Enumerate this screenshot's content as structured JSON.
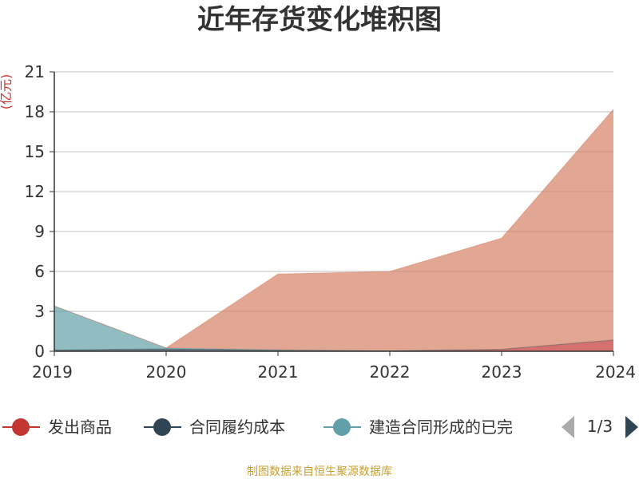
{
  "chart_data": {
    "type": "area",
    "title": "近年存货变化堆积图",
    "ylabel": "(亿元)",
    "x": [
      "2019",
      "2020",
      "2021",
      "2022",
      "2023",
      "2024"
    ],
    "ylim": [
      0,
      21
    ],
    "yticks": [
      0,
      3,
      6,
      9,
      12,
      15,
      18,
      21
    ],
    "stacked": true,
    "grid": true,
    "legend_position": "bottom",
    "series": [
      {
        "name": "发出商品",
        "color": "#c23531",
        "values": [
          0.0,
          0.0,
          0.0,
          0.0,
          0.15,
          0.85
        ]
      },
      {
        "name": "合同履约成本",
        "color": "#2f4554",
        "values": [
          0.1,
          0.2,
          0.1,
          0.05,
          0.0,
          0.0
        ]
      },
      {
        "name": "建造合同形成的已完",
        "color": "#61a0a8",
        "values": [
          3.3,
          0.05,
          0.0,
          0.0,
          0.0,
          0.0
        ]
      },
      {
        "name": "",
        "color": "#d48265",
        "values": [
          0.0,
          0.0,
          5.7,
          5.95,
          8.35,
          17.35
        ]
      }
    ]
  },
  "legend": {
    "page": "1/3"
  },
  "source": "制图数据来自恒生聚源数据库"
}
